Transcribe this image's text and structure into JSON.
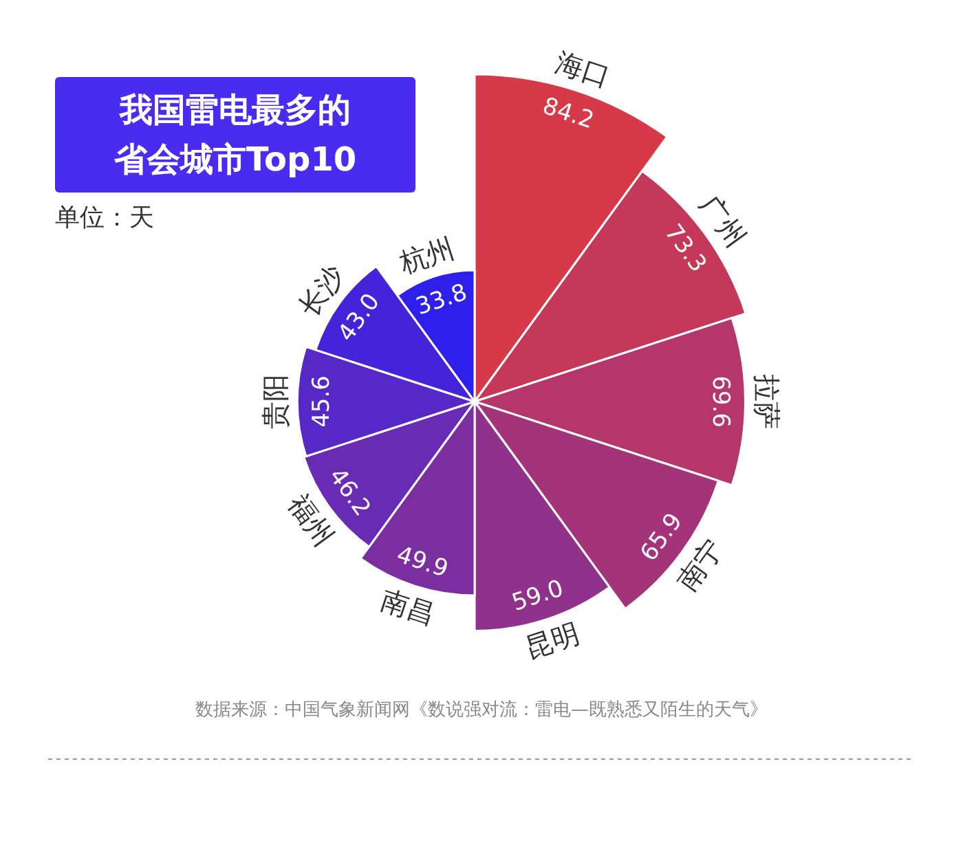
{
  "chart_data": {
    "type": "other",
    "title": "我国雷电最多的省会城市Top10",
    "subtitle": "单位：天",
    "categories": [
      "海口",
      "广州",
      "拉萨",
      "南宁",
      "昆明",
      "南昌",
      "福州",
      "贵阳",
      "长沙",
      "杭州"
    ],
    "values": [
      84.2,
      73.3,
      69.6,
      65.9,
      59.0,
      49.9,
      46.2,
      45.6,
      43.0,
      33.8
    ],
    "colors": [
      "#d63a48",
      "#c4385a",
      "#b4366a",
      "#a4347a",
      "#90318c",
      "#7b2ea0",
      "#6a2bb4",
      "#5628c6",
      "#4324d8",
      "#2f1fea"
    ],
    "value_labels": [
      "84.2",
      "73.3",
      "69.6",
      "65.9",
      "59.0",
      "49.9",
      "46.2",
      "45.6",
      "43.0",
      "33.8"
    ],
    "annotations": [
      "数据来源：中国气象新闻网《数说强对流：雷电—既熟悉又陌生的天气》"
    ]
  }
}
